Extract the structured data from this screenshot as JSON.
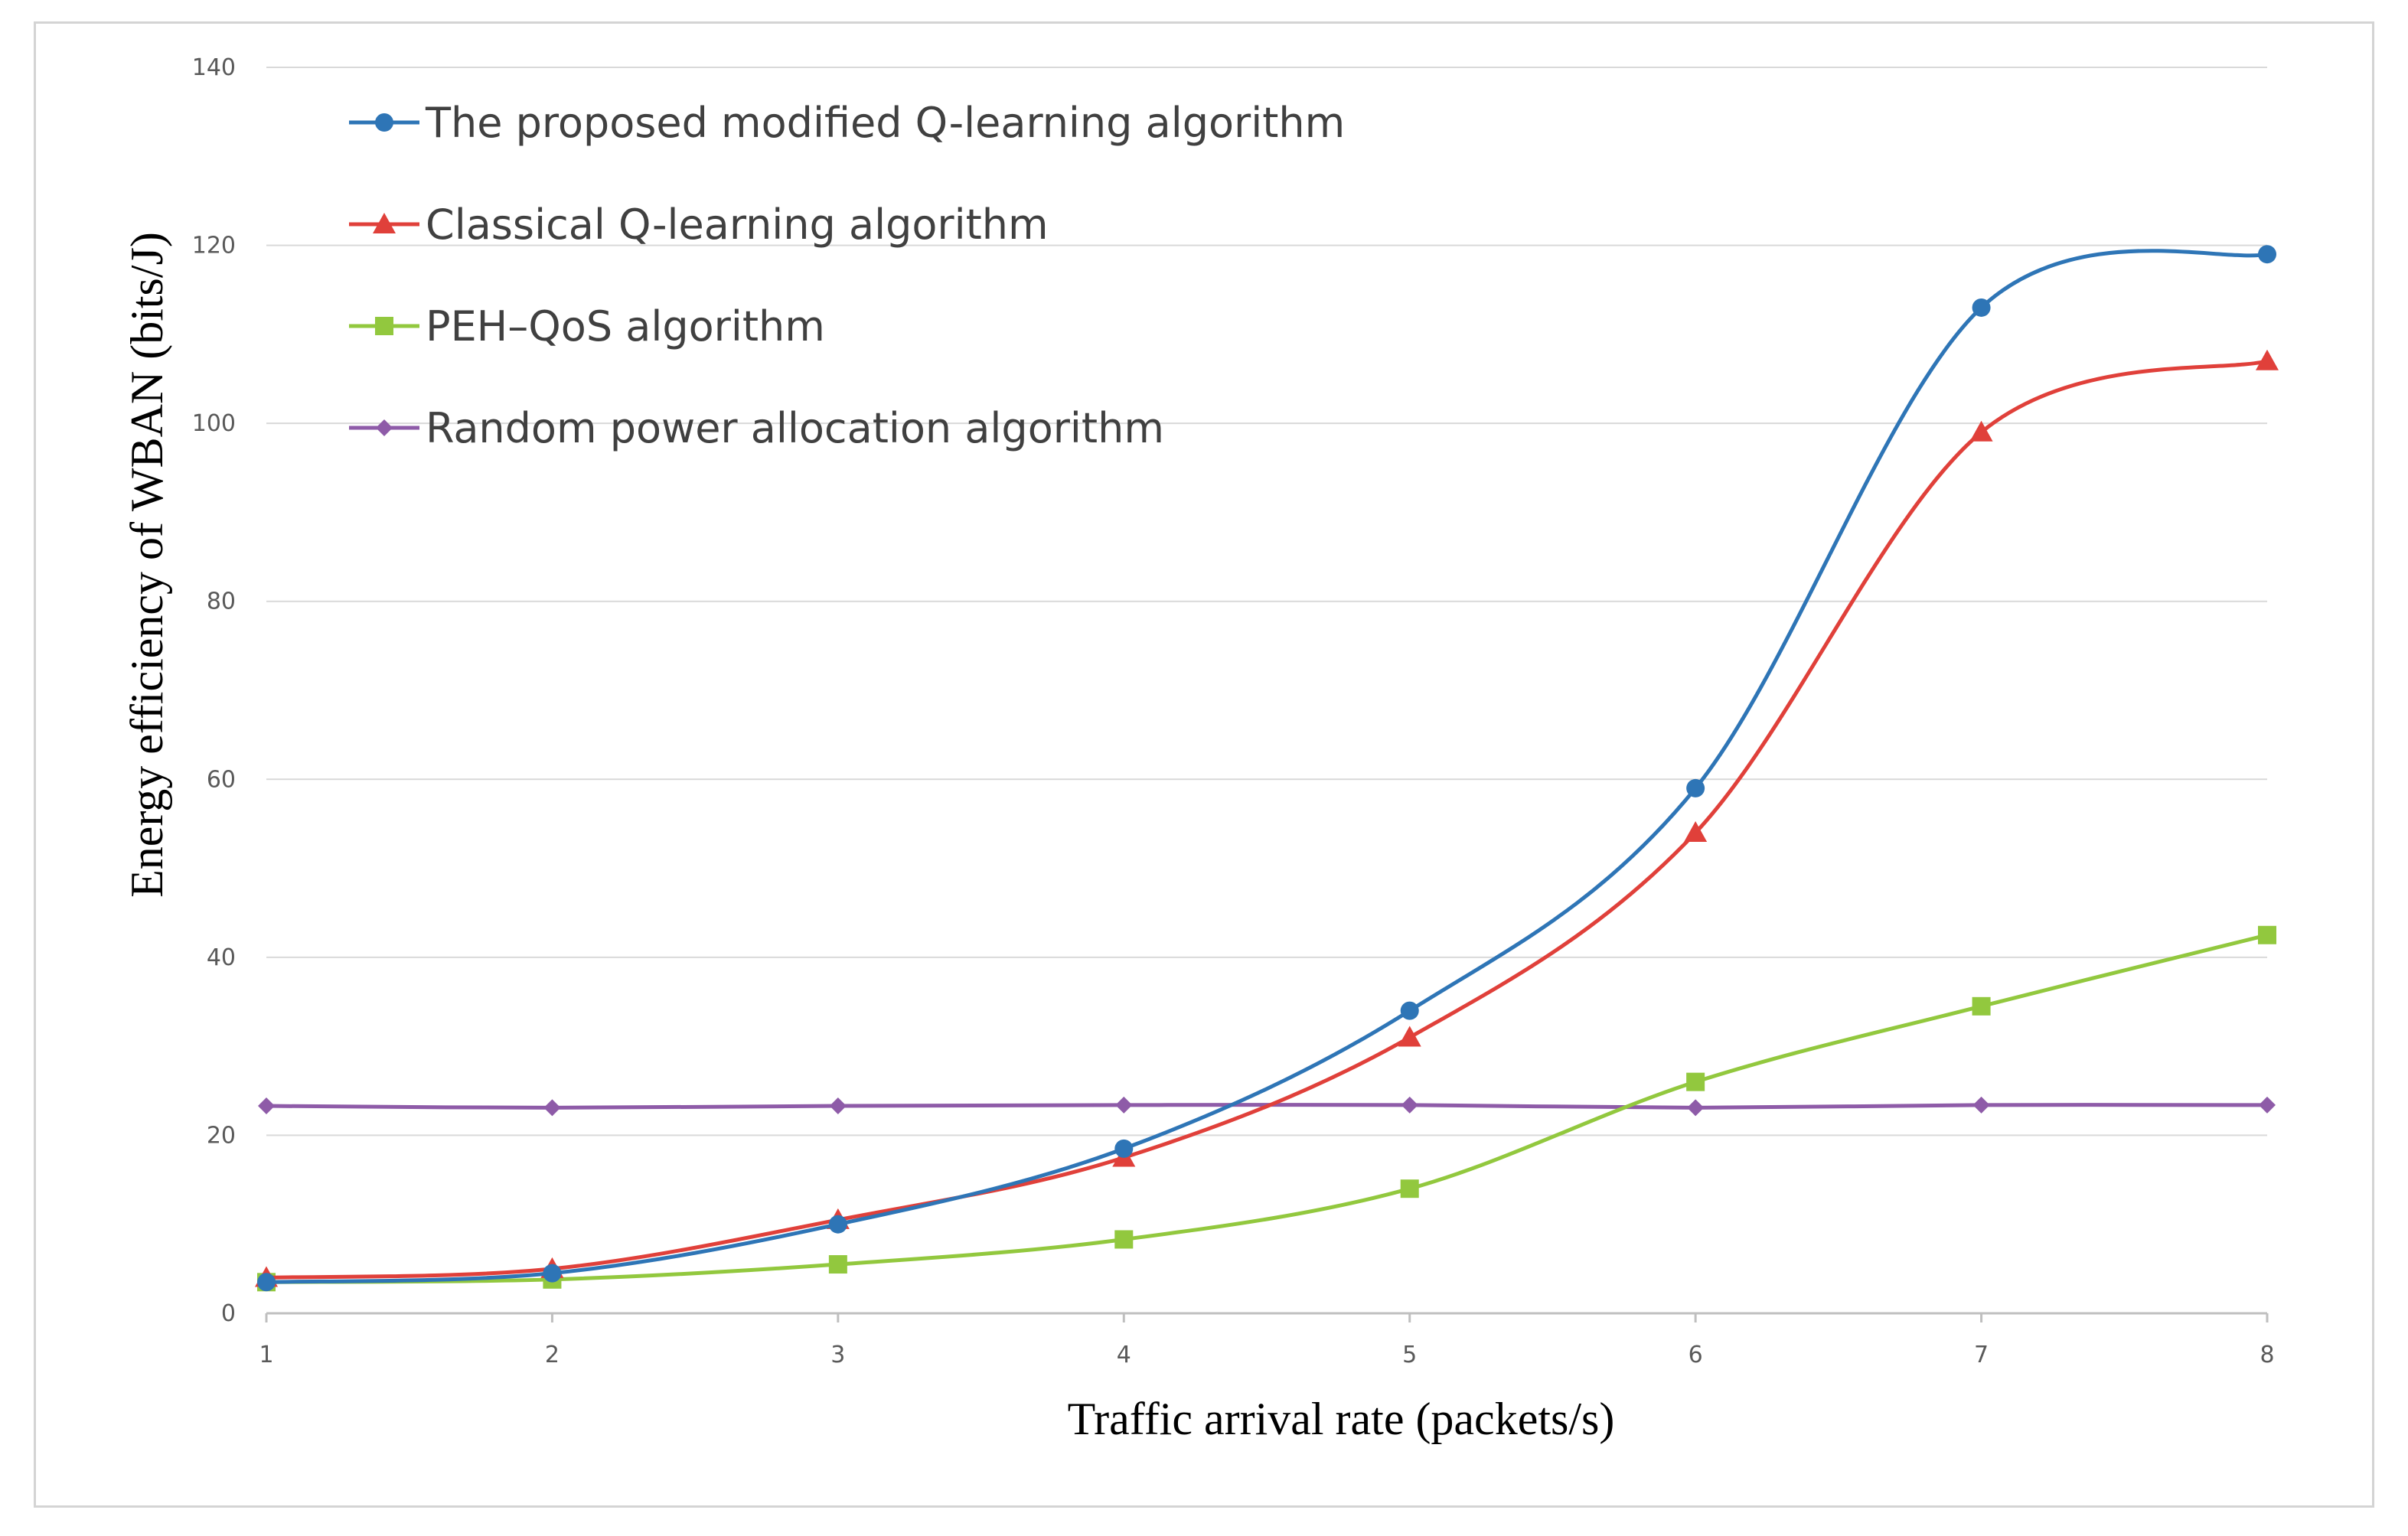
{
  "chart_data": {
    "type": "line",
    "title": "",
    "xlabel": "Traffic arrival  rate (packets/s)",
    "ylabel": "Energy  efficiency  of WBAN (bits/J)",
    "x": [
      1,
      2,
      3,
      4,
      5,
      6,
      7,
      8
    ],
    "xlim": [
      1,
      8
    ],
    "ylim": [
      0,
      140
    ],
    "x_ticks": [
      "1",
      "2",
      "3",
      "4",
      "5",
      "6",
      "7",
      "8"
    ],
    "y_ticks": [
      "0",
      "20",
      "40",
      "60",
      "80",
      "100",
      "120",
      "140"
    ],
    "grid": "horizontal",
    "legend_position": "top-left",
    "series": [
      {
        "name": "The proposed modified Q-learning algorithm",
        "marker": "circle",
        "color": "#2E75B6",
        "values": [
          3.5,
          4.5,
          10,
          18.5,
          34,
          59,
          113,
          119
        ]
      },
      {
        "name": "Classical Q-learning algorithm",
        "marker": "triangle",
        "color": "#E0403A",
        "values": [
          4,
          5,
          10.5,
          17.5,
          31,
          54,
          99,
          107
        ]
      },
      {
        "name": "PEH–QoS algorithm",
        "marker": "square",
        "color": "#92C83E",
        "values": [
          3.5,
          3.8,
          5.5,
          8.3,
          14,
          26,
          34.5,
          42.5
        ]
      },
      {
        "name": "Random power allocation algorithm",
        "marker": "diamond",
        "color": "#8E5BA8",
        "values": [
          23.3,
          23.1,
          23.3,
          23.4,
          23.4,
          23.1,
          23.4,
          23.4
        ]
      }
    ]
  }
}
